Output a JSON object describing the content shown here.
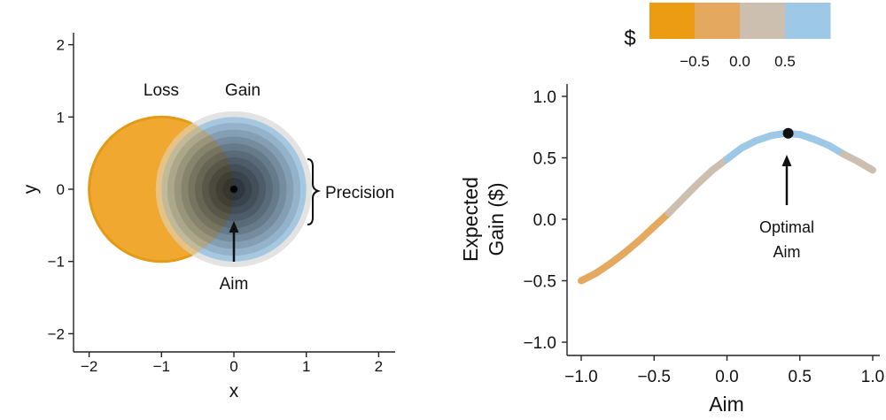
{
  "colors": {
    "loss_orange": "#F0A830",
    "loss_edge": "#E39A15",
    "gain_blue": "#9DC3DF",
    "spread_gray": "#DCDCDC",
    "dark_center": "#2A2A2A",
    "gain_scale": [
      "#EC9C12",
      "#E5A85F",
      "#CDBFAF",
      "#9DC8E6"
    ]
  },
  "chart_data": [
    {
      "type": "scatter",
      "panel": "left",
      "xlabel": "x",
      "ylabel": "y",
      "xlim": [
        -2.2,
        2.2
      ],
      "ylim": [
        -2.2,
        2.2
      ],
      "x_ticks": [
        "−2",
        "−1",
        "0",
        "1",
        "2"
      ],
      "x_tick_values": [
        -2,
        -1,
        0,
        1,
        2
      ],
      "y_ticks": [
        "−2",
        "−1",
        "0",
        "1",
        "2"
      ],
      "y_tick_values": [
        -2,
        -1,
        0,
        1,
        2
      ],
      "grid": false,
      "loss_region": {
        "label": "Loss",
        "center": [
          -1,
          0
        ],
        "radius": 1
      },
      "gain_region": {
        "label": "Gain",
        "center": [
          0,
          0
        ],
        "radius": 1
      },
      "aim_point": {
        "label": "Aim",
        "x": 0,
        "y": 0
      },
      "precision_label": "Precision",
      "endpoint_spread_radius": 1.08,
      "precision_radius": 0.5,
      "density_levels": 10
    },
    {
      "type": "line",
      "panel": "right",
      "xlabel": "Aim",
      "ylabel_lines": [
        "Expected",
        "Gain ($)"
      ],
      "xlim": [
        -1.05,
        1.0
      ],
      "ylim": [
        -1.05,
        1.05
      ],
      "x_ticks": [
        "−1.0",
        "−0.5",
        "0.0",
        "0.5",
        "1.0"
      ],
      "x_tick_values": [
        -1.0,
        -0.5,
        0.0,
        0.5,
        1.0
      ],
      "y_ticks": [
        "−1.0",
        "−0.5",
        "0.0",
        "0.5",
        "1.0"
      ],
      "y_tick_values": [
        -1.0,
        -0.5,
        0.0,
        0.5,
        1.0
      ],
      "grid": false,
      "series": [
        {
          "x": [
            -1.0,
            -0.9,
            -0.8,
            -0.7,
            -0.6,
            -0.5,
            -0.4,
            -0.3,
            -0.2,
            -0.1,
            0.0,
            0.1,
            0.2,
            0.3,
            0.4,
            0.5,
            0.6,
            0.7,
            0.8,
            0.9,
            1.0
          ],
          "values": [
            -0.5,
            -0.44,
            -0.36,
            -0.27,
            -0.17,
            -0.06,
            0.05,
            0.17,
            0.29,
            0.4,
            0.49,
            0.58,
            0.64,
            0.68,
            0.7,
            0.69,
            0.65,
            0.6,
            0.53,
            0.47,
            0.4
          ]
        }
      ],
      "optimum": {
        "label_lines": [
          "Optimal",
          "Aim"
        ],
        "x": 0.42,
        "y": 0.7
      },
      "colorbar": {
        "title": "$",
        "ticks": [
          "−0.5",
          "0.0",
          "0.5"
        ],
        "tick_values": [
          -0.5,
          0.0,
          0.5
        ],
        "bins": [
          -0.75,
          -0.25,
          0.25,
          0.75
        ]
      }
    }
  ]
}
